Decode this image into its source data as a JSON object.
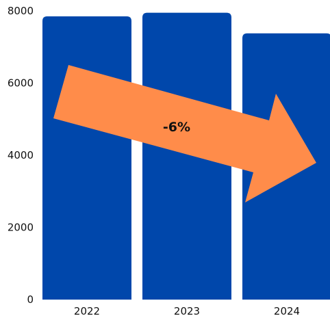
{
  "chart_data": {
    "type": "bar",
    "categories": [
      "2022",
      "2023",
      "2024"
    ],
    "values": [
      7850,
      7950,
      7380
    ],
    "ylim": [
      0,
      8000
    ],
    "yticks": [
      "0",
      "2000",
      "4000",
      "6000",
      "8000"
    ],
    "grid": false,
    "legend": "none",
    "annotation": {
      "label": "-6%",
      "shape": "arrow-down-right"
    },
    "colors": {
      "bar": "#0047AB",
      "arrow": "#FF8C4A",
      "text": "#111111"
    }
  }
}
